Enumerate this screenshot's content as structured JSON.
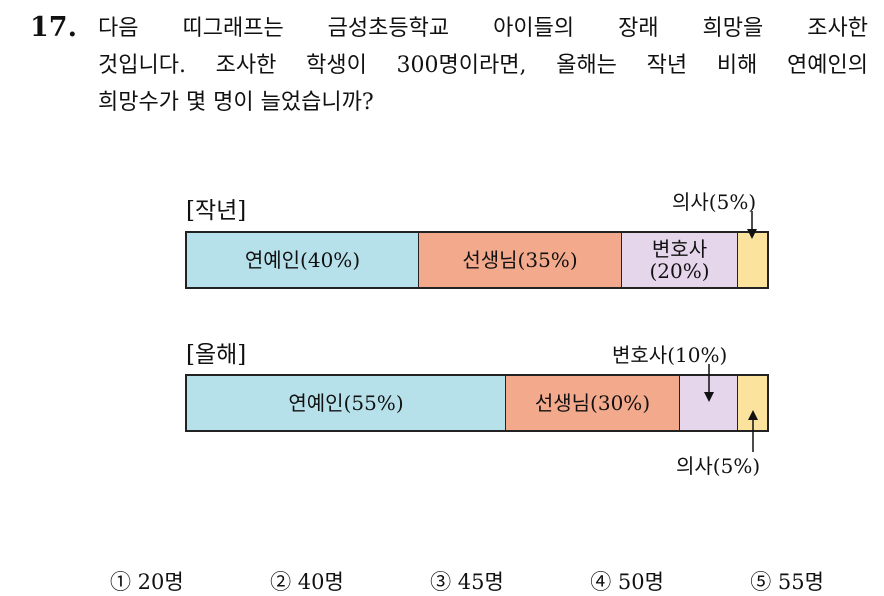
{
  "question": {
    "number": "17.",
    "lines": [
      "다음 띠그래프는 금성초등학교 아이들의 장래 희망을 조사한",
      "것입니다. 조사한 학생이 300명이라면, 올해는 작년 비해 연예인의",
      "희망수가 몇 명이 늘었습니까?"
    ]
  },
  "chart_data": [
    {
      "type": "bar",
      "title": "[작년]",
      "segments": [
        {
          "label": "연예인(40%)",
          "category": "연예인",
          "value": 40,
          "color": "#b6e0ea"
        },
        {
          "label": "선생님(35%)",
          "category": "선생님",
          "value": 35,
          "color": "#f3a98c"
        },
        {
          "label_line1": "변호사",
          "label_line2": "(20%)",
          "category": "변호사",
          "value": 20,
          "color": "#e6d6eb"
        },
        {
          "label": "",
          "category": "의사",
          "value": 5,
          "color": "#fbe39e"
        }
      ],
      "callouts": [
        {
          "text": "의사(5%)"
        }
      ]
    },
    {
      "type": "bar",
      "title": "[올해]",
      "segments": [
        {
          "label": "연예인(55%)",
          "category": "연예인",
          "value": 55,
          "color": "#b6e0ea"
        },
        {
          "label": "선생님(30%)",
          "category": "선생님",
          "value": 30,
          "color": "#f3a98c"
        },
        {
          "label": "",
          "category": "변호사",
          "value": 10,
          "color": "#e6d6eb"
        },
        {
          "label": "",
          "category": "의사",
          "value": 5,
          "color": "#fbe39e"
        }
      ],
      "callouts": [
        {
          "text": "변호사(10%)"
        },
        {
          "text": "의사(5%)"
        }
      ]
    }
  ],
  "choices": [
    "① 20명",
    "② 40명",
    "③ 45명",
    "④ 50명",
    "⑤ 55명"
  ]
}
